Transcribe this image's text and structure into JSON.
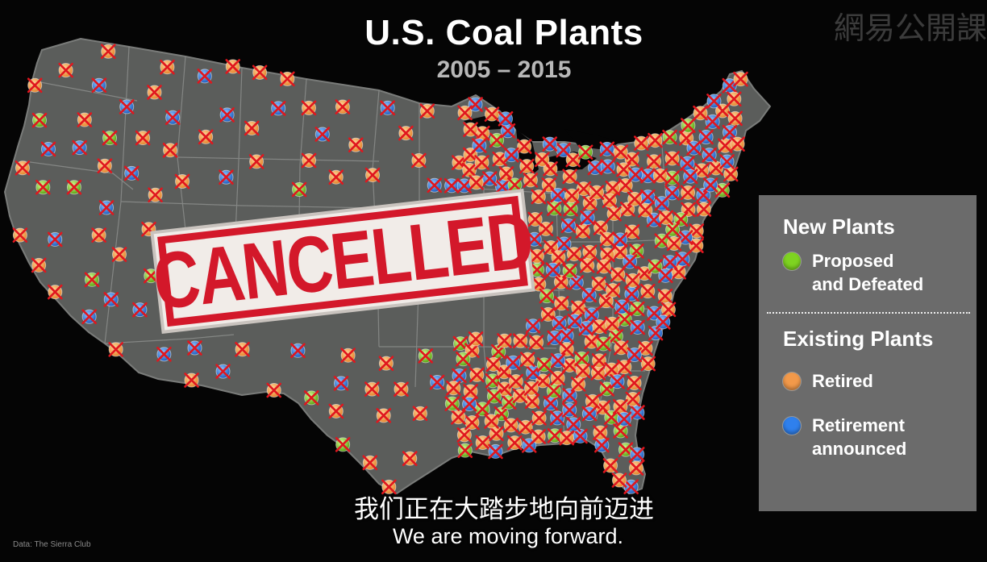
{
  "header": {
    "title": "U.S. Coal Plants",
    "subtitle": "2005 – 2015"
  },
  "watermark": "網易公開課",
  "stamp": {
    "text": "CANCELLED",
    "color": "#d3182a"
  },
  "legend": {
    "new_heading": "New Plants",
    "existing_heading": "Existing Plants",
    "items": [
      {
        "label": "Proposed\nand Defeated",
        "color": "#7ed321"
      },
      {
        "label": "Retired",
        "color": "#f2994a"
      },
      {
        "label": "Retirement\nannounced",
        "color": "#2f80ed"
      }
    ]
  },
  "captions": {
    "zh": "我们正在大踏步地向前迈进",
    "en": "We are moving forward."
  },
  "credit": "Data: The Sierra Club",
  "map_style": {
    "land_color": "#5b5d5b",
    "border_color": "#8c8e8c",
    "cross_color": "#e0161e"
  }
}
